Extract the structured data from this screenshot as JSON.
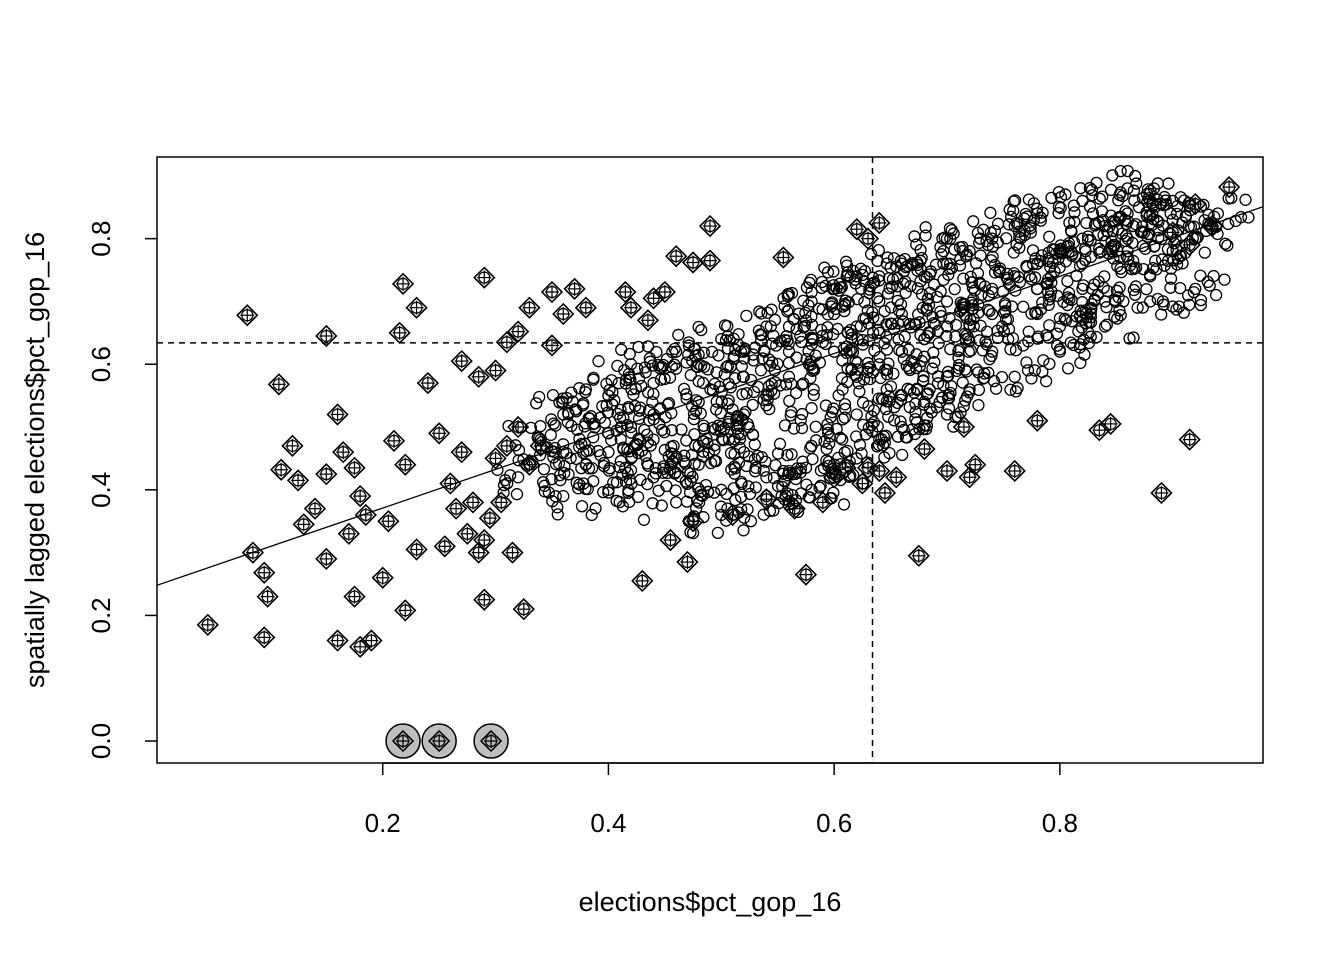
{
  "chart_data": {
    "type": "scatter",
    "title": "",
    "xlabel": "elections$pct_gop_16",
    "ylabel": "spatially lagged elections$pct_gop_16",
    "xlim": [
      0.0,
      0.98
    ],
    "ylim": [
      -0.035,
      0.93
    ],
    "x_ticks": [
      {
        "value": 0.2,
        "label": "0.2"
      },
      {
        "value": 0.4,
        "label": "0.4"
      },
      {
        "value": 0.6,
        "label": "0.6"
      },
      {
        "value": 0.8,
        "label": "0.8"
      }
    ],
    "y_ticks": [
      {
        "value": 0.0,
        "label": "0.0"
      },
      {
        "value": 0.2,
        "label": "0.2"
      },
      {
        "value": 0.4,
        "label": "0.4"
      },
      {
        "value": 0.6,
        "label": "0.6"
      },
      {
        "value": 0.8,
        "label": "0.8"
      }
    ],
    "mean_x": 0.634,
    "mean_y": 0.634,
    "regression": {
      "intercept": 0.248,
      "slope": 0.615
    },
    "main_cloud_points": [
      [
        0.6,
        0.62
      ],
      [
        0.62,
        0.66
      ],
      [
        0.64,
        0.6
      ],
      [
        0.66,
        0.68
      ],
      [
        0.68,
        0.64
      ],
      [
        0.7,
        0.7
      ],
      [
        0.72,
        0.66
      ],
      [
        0.74,
        0.72
      ],
      [
        0.76,
        0.74
      ],
      [
        0.78,
        0.76
      ],
      [
        0.8,
        0.78
      ],
      [
        0.82,
        0.8
      ],
      [
        0.84,
        0.82
      ],
      [
        0.86,
        0.84
      ],
      [
        0.88,
        0.86
      ],
      [
        0.9,
        0.83
      ],
      [
        0.56,
        0.58
      ],
      [
        0.54,
        0.55
      ],
      [
        0.52,
        0.52
      ],
      [
        0.5,
        0.5
      ],
      [
        0.48,
        0.47
      ],
      [
        0.46,
        0.45
      ],
      [
        0.44,
        0.48
      ],
      [
        0.42,
        0.5
      ],
      [
        0.4,
        0.46
      ],
      [
        0.38,
        0.44
      ],
      [
        0.58,
        0.47
      ],
      [
        0.62,
        0.45
      ],
      [
        0.66,
        0.55
      ],
      [
        0.7,
        0.58
      ],
      [
        0.74,
        0.62
      ],
      [
        0.78,
        0.68
      ],
      [
        0.82,
        0.72
      ],
      [
        0.86,
        0.78
      ],
      [
        0.72,
        0.78
      ],
      [
        0.76,
        0.82
      ],
      [
        0.68,
        0.74
      ],
      [
        0.64,
        0.7
      ],
      [
        0.6,
        0.72
      ],
      [
        0.56,
        0.66
      ],
      [
        0.52,
        0.62
      ],
      [
        0.48,
        0.6
      ],
      [
        0.44,
        0.57
      ],
      [
        0.4,
        0.55
      ],
      [
        0.36,
        0.52
      ],
      [
        0.34,
        0.48
      ],
      [
        0.5,
        0.4
      ],
      [
        0.54,
        0.42
      ],
      [
        0.58,
        0.4
      ],
      [
        0.62,
        0.52
      ],
      [
        0.66,
        0.5
      ],
      [
        0.7,
        0.52
      ],
      [
        0.8,
        0.66
      ],
      [
        0.84,
        0.7
      ],
      [
        0.88,
        0.74
      ],
      [
        0.92,
        0.8
      ],
      [
        0.86,
        0.88
      ],
      [
        0.82,
        0.86
      ],
      [
        0.78,
        0.84
      ],
      [
        0.74,
        0.8
      ],
      [
        0.7,
        0.76
      ],
      [
        0.64,
        0.74
      ],
      [
        0.6,
        0.68
      ],
      [
        0.56,
        0.62
      ],
      [
        0.52,
        0.58
      ],
      [
        0.48,
        0.54
      ],
      [
        0.44,
        0.52
      ],
      [
        0.4,
        0.49
      ],
      [
        0.36,
        0.46
      ],
      [
        0.32,
        0.42
      ],
      [
        0.38,
        0.56
      ],
      [
        0.42,
        0.6
      ],
      [
        0.46,
        0.62
      ],
      [
        0.5,
        0.64
      ],
      [
        0.54,
        0.66
      ],
      [
        0.58,
        0.7
      ],
      [
        0.62,
        0.74
      ],
      [
        0.66,
        0.76
      ],
      [
        0.7,
        0.8
      ],
      [
        0.9,
        0.78
      ],
      [
        0.88,
        0.7
      ],
      [
        0.84,
        0.66
      ],
      [
        0.8,
        0.62
      ],
      [
        0.76,
        0.58
      ],
      [
        0.72,
        0.56
      ],
      [
        0.68,
        0.54
      ],
      [
        0.64,
        0.48
      ],
      [
        0.6,
        0.44
      ],
      [
        0.56,
        0.43
      ],
      [
        0.52,
        0.46
      ],
      [
        0.48,
        0.44
      ],
      [
        0.44,
        0.42
      ],
      [
        0.4,
        0.4
      ],
      [
        0.36,
        0.39
      ],
      [
        0.46,
        0.38
      ],
      [
        0.5,
        0.36
      ],
      [
        0.54,
        0.39
      ],
      [
        0.58,
        0.53
      ],
      [
        0.62,
        0.58
      ],
      [
        0.66,
        0.62
      ],
      [
        0.7,
        0.66
      ],
      [
        0.74,
        0.68
      ],
      [
        0.78,
        0.72
      ],
      [
        0.82,
        0.76
      ],
      [
        0.86,
        0.8
      ],
      [
        0.9,
        0.86
      ],
      [
        0.94,
        0.84
      ],
      [
        0.92,
        0.72
      ]
    ],
    "influential_diamond_points": [
      [
        0.045,
        0.185
      ],
      [
        0.085,
        0.3
      ],
      [
        0.095,
        0.268
      ],
      [
        0.098,
        0.23
      ],
      [
        0.095,
        0.165
      ],
      [
        0.08,
        0.678
      ],
      [
        0.108,
        0.568
      ],
      [
        0.11,
        0.432
      ],
      [
        0.12,
        0.47
      ],
      [
        0.125,
        0.415
      ],
      [
        0.13,
        0.345
      ],
      [
        0.14,
        0.37
      ],
      [
        0.15,
        0.425
      ],
      [
        0.15,
        0.29
      ],
      [
        0.16,
        0.52
      ],
      [
        0.15,
        0.645
      ],
      [
        0.165,
        0.46
      ],
      [
        0.17,
        0.33
      ],
      [
        0.175,
        0.435
      ],
      [
        0.18,
        0.39
      ],
      [
        0.185,
        0.36
      ],
      [
        0.16,
        0.16
      ],
      [
        0.18,
        0.15
      ],
      [
        0.19,
        0.16
      ],
      [
        0.175,
        0.23
      ],
      [
        0.2,
        0.26
      ],
      [
        0.205,
        0.35
      ],
      [
        0.21,
        0.478
      ],
      [
        0.22,
        0.44
      ],
      [
        0.23,
        0.305
      ],
      [
        0.24,
        0.57
      ],
      [
        0.25,
        0.49
      ],
      [
        0.26,
        0.41
      ],
      [
        0.27,
        0.46
      ],
      [
        0.28,
        0.38
      ],
      [
        0.29,
        0.32
      ],
      [
        0.3,
        0.45
      ],
      [
        0.31,
        0.47
      ],
      [
        0.32,
        0.5
      ],
      [
        0.33,
        0.44
      ],
      [
        0.34,
        0.47
      ],
      [
        0.255,
        0.31
      ],
      [
        0.265,
        0.37
      ],
      [
        0.275,
        0.33
      ],
      [
        0.285,
        0.3
      ],
      [
        0.295,
        0.355
      ],
      [
        0.305,
        0.38
      ],
      [
        0.315,
        0.3
      ],
      [
        0.325,
        0.21
      ],
      [
        0.29,
        0.225
      ],
      [
        0.22,
        0.208
      ],
      [
        0.215,
        0.65
      ],
      [
        0.218,
        0.728
      ],
      [
        0.23,
        0.69
      ],
      [
        0.29,
        0.738
      ],
      [
        0.27,
        0.605
      ],
      [
        0.285,
        0.58
      ],
      [
        0.3,
        0.59
      ],
      [
        0.31,
        0.635
      ],
      [
        0.32,
        0.652
      ],
      [
        0.33,
        0.69
      ],
      [
        0.35,
        0.63
      ],
      [
        0.36,
        0.68
      ],
      [
        0.35,
        0.715
      ],
      [
        0.37,
        0.72
      ],
      [
        0.38,
        0.69
      ],
      [
        0.415,
        0.715
      ],
      [
        0.42,
        0.69
      ],
      [
        0.44,
        0.705
      ],
      [
        0.45,
        0.715
      ],
      [
        0.435,
        0.67
      ],
      [
        0.46,
        0.772
      ],
      [
        0.49,
        0.765
      ],
      [
        0.475,
        0.762
      ],
      [
        0.49,
        0.82
      ],
      [
        0.555,
        0.77
      ],
      [
        0.43,
        0.255
      ],
      [
        0.455,
        0.32
      ],
      [
        0.47,
        0.285
      ],
      [
        0.475,
        0.35
      ],
      [
        0.51,
        0.36
      ],
      [
        0.54,
        0.385
      ],
      [
        0.565,
        0.37
      ],
      [
        0.575,
        0.265
      ],
      [
        0.59,
        0.38
      ],
      [
        0.6,
        0.42
      ],
      [
        0.61,
        0.435
      ],
      [
        0.625,
        0.41
      ],
      [
        0.63,
        0.435
      ],
      [
        0.64,
        0.43
      ],
      [
        0.645,
        0.395
      ],
      [
        0.655,
        0.42
      ],
      [
        0.675,
        0.295
      ],
      [
        0.68,
        0.465
      ],
      [
        0.7,
        0.43
      ],
      [
        0.715,
        0.5
      ],
      [
        0.72,
        0.42
      ],
      [
        0.725,
        0.44
      ],
      [
        0.76,
        0.43
      ],
      [
        0.78,
        0.51
      ],
      [
        0.835,
        0.495
      ],
      [
        0.845,
        0.505
      ],
      [
        0.89,
        0.395
      ],
      [
        0.915,
        0.48
      ],
      [
        0.62,
        0.815
      ],
      [
        0.64,
        0.825
      ],
      [
        0.63,
        0.8
      ],
      [
        0.9,
        0.81
      ],
      [
        0.915,
        0.79
      ],
      [
        0.935,
        0.82
      ],
      [
        0.92,
        0.855
      ],
      [
        0.95,
        0.882
      ]
    ],
    "zero_lag_points": [
      [
        0.218,
        0.0
      ],
      [
        0.25,
        0.0
      ],
      [
        0.296,
        0.0
      ]
    ]
  }
}
